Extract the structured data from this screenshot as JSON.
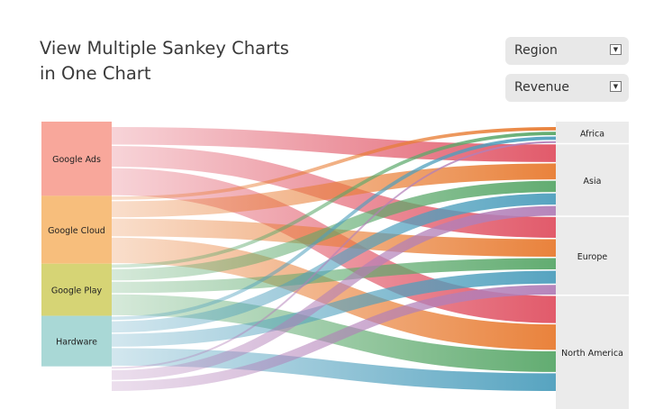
{
  "title": {
    "line1": "View Multiple Sankey Charts",
    "line2": "in One Chart"
  },
  "filters": {
    "region_select": {
      "value": "Region"
    },
    "metric_select": {
      "value": "Revenue"
    }
  },
  "chart_data": {
    "type": "sankey",
    "sources": [
      {
        "name": "Google Ads",
        "color": "#f8a79b"
      },
      {
        "name": "Google Cloud",
        "color": "#f7be7c"
      },
      {
        "name": "Google Play",
        "color": "#d6d475"
      },
      {
        "name": "Hardware",
        "color": "#a9d8d6"
      }
    ],
    "targets": [
      {
        "name": "Africa"
      },
      {
        "name": "Asia"
      },
      {
        "name": "Europe"
      },
      {
        "name": "North America"
      }
    ],
    "flow_colors": {
      "Google Ads": "#e05263",
      "Google Cloud": "#e87c32",
      "Google Play": "#5aa86a",
      "Hardware": "#4e9fbd",
      "Other": "#b27fb8"
    },
    "links": [
      {
        "source": "Google Ads",
        "target": "Africa",
        "value": 3
      },
      {
        "source": "Google Ads",
        "target": "Asia",
        "value": 12
      },
      {
        "source": "Google Ads",
        "target": "Europe",
        "value": 14
      },
      {
        "source": "Google Ads",
        "target": "North America",
        "value": 18
      },
      {
        "source": "Google Cloud",
        "target": "Africa",
        "value": 3
      },
      {
        "source": "Google Cloud",
        "target": "Asia",
        "value": 11
      },
      {
        "source": "Google Cloud",
        "target": "Europe",
        "value": 12
      },
      {
        "source": "Google Cloud",
        "target": "North America",
        "value": 17
      },
      {
        "source": "Google Play",
        "target": "Africa",
        "value": 3
      },
      {
        "source": "Google Play",
        "target": "Asia",
        "value": 8
      },
      {
        "source": "Google Play",
        "target": "Europe",
        "value": 8
      },
      {
        "source": "Google Play",
        "target": "North America",
        "value": 14
      },
      {
        "source": "Hardware",
        "target": "Africa",
        "value": 3
      },
      {
        "source": "Hardware",
        "target": "Asia",
        "value": 8
      },
      {
        "source": "Hardware",
        "target": "Europe",
        "value": 9
      },
      {
        "source": "Hardware",
        "target": "North America",
        "value": 12
      },
      {
        "source": "Other",
        "target": "Africa",
        "value": 2
      },
      {
        "source": "Other",
        "target": "Asia",
        "value": 7
      },
      {
        "source": "Other",
        "target": "Europe",
        "value": 7
      },
      {
        "source": "Other",
        "target": "North America",
        "value": 11
      }
    ]
  }
}
